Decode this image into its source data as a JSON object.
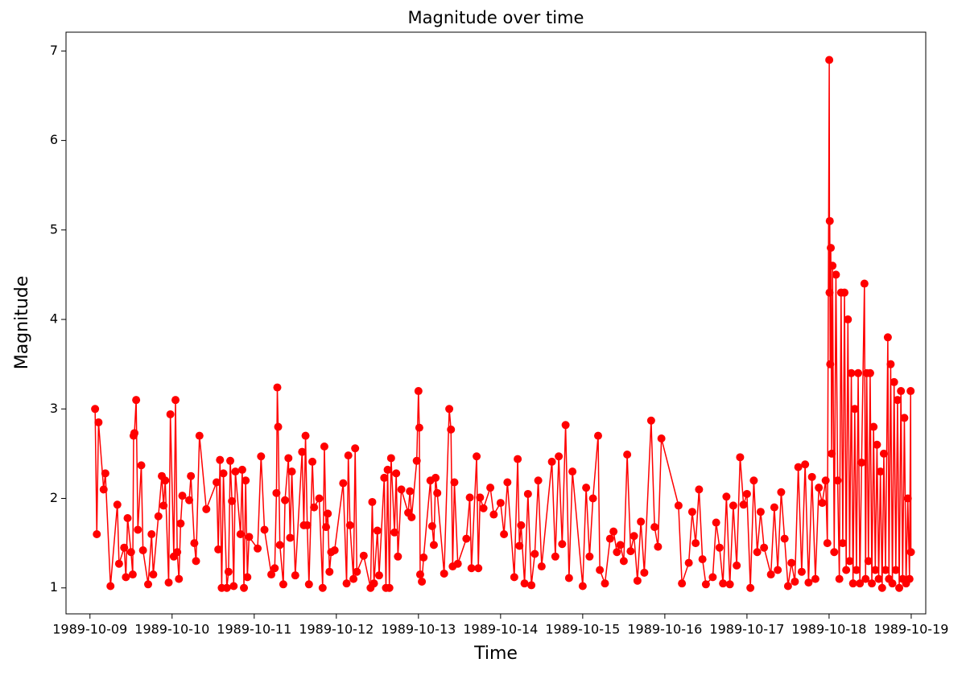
{
  "chart_data": {
    "type": "line",
    "title": "Magnitude over time",
    "x_label": "Time",
    "y_label": "Magnitude",
    "color": "#ff0000",
    "x": [
      "1989-10-09T01:30",
      "1989-10-09T02:00",
      "1989-10-09T02:30",
      "1989-10-09T04:00",
      "1989-10-09T04:30",
      "1989-10-09T06:00",
      "1989-10-09T08:00",
      "1989-10-09T08:30",
      "1989-10-09T10:00",
      "1989-10-09T10:30",
      "1989-10-09T11:00",
      "1989-10-09T12:00",
      "1989-10-09T12:30",
      "1989-10-09T12:45",
      "1989-10-09T13:00",
      "1989-10-09T13:30",
      "1989-10-09T14:00",
      "1989-10-09T15:00",
      "1989-10-09T15:30",
      "1989-10-09T17:00",
      "1989-10-09T18:00",
      "1989-10-09T18:30",
      "1989-10-09T20:00",
      "1989-10-09T21:00",
      "1989-10-09T21:30",
      "1989-10-09T22:00",
      "1989-10-09T23:00",
      "1989-10-09T23:30",
      "1989-10-10T00:30",
      "1989-10-10T01:00",
      "1989-10-10T01:30",
      "1989-10-10T02:00",
      "1989-10-10T02:30",
      "1989-10-10T03:00",
      "1989-10-10T05:00",
      "1989-10-10T05:30",
      "1989-10-10T06:30",
      "1989-10-10T07:00",
      "1989-10-10T08:00",
      "1989-10-10T10:00",
      "1989-10-10T13:00",
      "1989-10-10T13:30",
      "1989-10-10T14:00",
      "1989-10-10T14:30",
      "1989-10-10T15:00",
      "1989-10-10T16:00",
      "1989-10-10T16:30",
      "1989-10-10T17:00",
      "1989-10-10T17:30",
      "1989-10-10T18:00",
      "1989-10-10T18:30",
      "1989-10-10T20:00",
      "1989-10-10T20:30",
      "1989-10-10T21:00",
      "1989-10-10T21:30",
      "1989-10-10T22:00",
      "1989-10-10T22:30",
      "1989-10-11T01:00",
      "1989-10-11T02:00",
      "1989-10-11T03:00",
      "1989-10-11T05:00",
      "1989-10-11T06:00",
      "1989-10-11T06:30",
      "1989-10-11T06:45",
      "1989-10-11T07:00",
      "1989-10-11T07:30",
      "1989-10-11T08:30",
      "1989-10-11T09:00",
      "1989-10-11T10:00",
      "1989-10-11T10:30",
      "1989-10-11T11:00",
      "1989-10-11T12:00",
      "1989-10-11T14:00",
      "1989-10-11T14:30",
      "1989-10-11T15:00",
      "1989-10-11T15:30",
      "1989-10-11T16:00",
      "1989-10-11T17:00",
      "1989-10-11T17:30",
      "1989-10-11T19:00",
      "1989-10-11T20:00",
      "1989-10-11T20:30",
      "1989-10-11T21:00",
      "1989-10-11T21:30",
      "1989-10-11T22:00",
      "1989-10-11T22:30",
      "1989-10-11T23:30",
      "1989-10-12T02:00",
      "1989-10-12T03:00",
      "1989-10-12T03:30",
      "1989-10-12T04:00",
      "1989-10-12T05:00",
      "1989-10-12T05:30",
      "1989-10-12T06:00",
      "1989-10-12T08:00",
      "1989-10-12T10:00",
      "1989-10-12T10:30",
      "1989-10-12T11:00",
      "1989-10-12T12:00",
      "1989-10-12T12:30",
      "1989-10-12T14:00",
      "1989-10-12T14:30",
      "1989-10-12T15:00",
      "1989-10-12T15:30",
      "1989-10-12T16:00",
      "1989-10-12T17:00",
      "1989-10-12T17:30",
      "1989-10-12T18:00",
      "1989-10-12T19:00",
      "1989-10-12T21:00",
      "1989-10-12T21:30",
      "1989-10-12T22:00",
      "1989-10-12T23:30",
      "1989-10-13T00:00",
      "1989-10-13T00:15",
      "1989-10-13T00:30",
      "1989-10-13T01:00",
      "1989-10-13T01:30",
      "1989-10-13T03:30",
      "1989-10-13T04:00",
      "1989-10-13T04:30",
      "1989-10-13T05:00",
      "1989-10-13T05:30",
      "1989-10-13T07:30",
      "1989-10-13T09:00",
      "1989-10-13T09:30",
      "1989-10-13T10:00",
      "1989-10-13T10:30",
      "1989-10-13T11:30",
      "1989-10-13T14:00",
      "1989-10-13T15:00",
      "1989-10-13T15:30",
      "1989-10-13T17:00",
      "1989-10-13T17:30",
      "1989-10-13T18:00",
      "1989-10-13T19:00",
      "1989-10-13T21:00",
      "1989-10-13T22:00",
      "1989-10-14T00:00",
      "1989-10-14T01:00",
      "1989-10-14T02:00",
      "1989-10-14T04:00",
      "1989-10-14T05:00",
      "1989-10-14T05:30",
      "1989-10-14T06:00",
      "1989-10-14T07:00",
      "1989-10-14T08:00",
      "1989-10-14T09:00",
      "1989-10-14T10:00",
      "1989-10-14T11:00",
      "1989-10-14T12:00",
      "1989-10-14T15:00",
      "1989-10-14T16:00",
      "1989-10-14T17:00",
      "1989-10-14T18:00",
      "1989-10-14T19:00",
      "1989-10-14T20:00",
      "1989-10-14T21:00",
      "1989-10-15T00:00",
      "1989-10-15T01:00",
      "1989-10-15T02:00",
      "1989-10-15T03:00",
      "1989-10-15T04:30",
      "1989-10-15T05:00",
      "1989-10-15T06:30",
      "1989-10-15T08:00",
      "1989-10-15T09:00",
      "1989-10-15T10:00",
      "1989-10-15T11:00",
      "1989-10-15T12:00",
      "1989-10-15T13:00",
      "1989-10-15T14:00",
      "1989-10-15T15:00",
      "1989-10-15T16:00",
      "1989-10-15T17:00",
      "1989-10-15T18:00",
      "1989-10-15T20:00",
      "1989-10-15T21:00",
      "1989-10-15T22:00",
      "1989-10-15T23:00",
      "1989-10-16T04:00",
      "1989-10-16T05:00",
      "1989-10-16T07:00",
      "1989-10-16T08:00",
      "1989-10-16T09:00",
      "1989-10-16T10:00",
      "1989-10-16T11:00",
      "1989-10-16T12:00",
      "1989-10-16T14:00",
      "1989-10-16T15:00",
      "1989-10-16T16:00",
      "1989-10-16T17:00",
      "1989-10-16T18:00",
      "1989-10-16T19:00",
      "1989-10-16T20:00",
      "1989-10-16T21:00",
      "1989-10-16T22:00",
      "1989-10-16T23:00",
      "1989-10-17T00:00",
      "1989-10-17T01:00",
      "1989-10-17T02:00",
      "1989-10-17T03:00",
      "1989-10-17T04:00",
      "1989-10-17T05:00",
      "1989-10-17T07:00",
      "1989-10-17T08:00",
      "1989-10-17T09:00",
      "1989-10-17T10:00",
      "1989-10-17T11:00",
      "1989-10-17T12:00",
      "1989-10-17T13:00",
      "1989-10-17T14:00",
      "1989-10-17T15:00",
      "1989-10-17T16:00",
      "1989-10-17T17:00",
      "1989-10-17T18:00",
      "1989-10-17T19:00",
      "1989-10-17T20:00",
      "1989-10-17T21:00",
      "1989-10-17T22:00",
      "1989-10-17T23:00",
      "1989-10-17T23:30",
      "1989-10-18T00:03",
      "1989-10-18T00:08",
      "1989-10-18T00:12",
      "1989-10-18T00:20",
      "1989-10-18T00:30",
      "1989-10-18T00:45",
      "1989-10-18T01:00",
      "1989-10-18T01:30",
      "1989-10-18T02:00",
      "1989-10-18T02:30",
      "1989-10-18T03:00",
      "1989-10-18T03:30",
      "1989-10-18T04:00",
      "1989-10-18T04:30",
      "1989-10-18T05:00",
      "1989-10-18T05:30",
      "1989-10-18T06:00",
      "1989-10-18T06:30",
      "1989-10-18T07:00",
      "1989-10-18T07:30",
      "1989-10-18T08:00",
      "1989-10-18T08:30",
      "1989-10-18T09:00",
      "1989-10-18T09:30",
      "1989-10-18T10:20",
      "1989-10-18T10:40",
      "1989-10-18T11:00",
      "1989-10-18T11:30",
      "1989-10-18T12:00",
      "1989-10-18T12:30",
      "1989-10-18T13:00",
      "1989-10-18T13:30",
      "1989-10-18T14:00",
      "1989-10-18T14:30",
      "1989-10-18T15:00",
      "1989-10-18T15:30",
      "1989-10-18T16:00",
      "1989-10-18T16:30",
      "1989-10-18T17:10",
      "1989-10-18T17:30",
      "1989-10-18T18:00",
      "1989-10-18T18:30",
      "1989-10-18T19:00",
      "1989-10-18T19:30",
      "1989-10-18T20:00",
      "1989-10-18T20:30",
      "1989-10-18T21:00",
      "1989-10-18T21:30",
      "1989-10-18T22:00",
      "1989-10-18T22:30",
      "1989-10-18T23:00",
      "1989-10-18T23:30",
      "1989-10-18T23:50",
      "1989-10-18T23:55"
    ],
    "values": [
      3.0,
      1.6,
      2.85,
      2.1,
      2.28,
      1.02,
      1.93,
      1.27,
      1.45,
      1.12,
      1.78,
      1.4,
      1.15,
      2.7,
      2.73,
      3.1,
      1.65,
      2.37,
      1.42,
      1.04,
      1.6,
      1.15,
      1.8,
      2.25,
      1.92,
      2.2,
      1.06,
      2.94,
      1.35,
      3.1,
      1.4,
      1.1,
      1.72,
      2.03,
      1.98,
      2.25,
      1.5,
      1.3,
      2.7,
      1.88,
      2.18,
      1.43,
      2.43,
      1.0,
      2.28,
      1.0,
      1.18,
      2.42,
      1.97,
      1.02,
      2.3,
      1.6,
      2.32,
      1.0,
      2.2,
      1.12,
      1.57,
      1.44,
      2.47,
      1.65,
      1.15,
      1.22,
      2.06,
      3.24,
      2.8,
      1.48,
      1.04,
      1.98,
      2.45,
      1.56,
      2.3,
      1.14,
      2.52,
      1.7,
      2.7,
      1.7,
      1.04,
      2.41,
      1.9,
      2.0,
      1.0,
      2.58,
      1.68,
      1.83,
      1.18,
      1.4,
      1.42,
      2.17,
      1.05,
      2.48,
      1.7,
      1.1,
      2.56,
      1.18,
      1.36,
      1.0,
      1.96,
      1.05,
      1.64,
      1.14,
      2.23,
      1.0,
      2.32,
      1.0,
      2.45,
      1.62,
      2.28,
      1.35,
      2.1,
      1.84,
      2.08,
      1.79,
      2.42,
      3.2,
      2.79,
      1.15,
      1.07,
      1.34,
      2.2,
      1.69,
      1.48,
      2.23,
      2.06,
      1.16,
      3.0,
      2.77,
      1.24,
      2.18,
      1.27,
      1.55,
      2.01,
      1.22,
      2.47,
      1.22,
      2.01,
      1.89,
      2.12,
      1.82,
      1.95,
      1.6,
      2.18,
      1.12,
      2.44,
      1.47,
      1.7,
      1.05,
      2.05,
      1.03,
      1.38,
      2.2,
      1.24,
      2.41,
      1.35,
      2.47,
      1.49,
      2.82,
      1.11,
      2.3,
      1.02,
      2.12,
      1.35,
      2.0,
      2.7,
      1.2,
      1.05,
      1.55,
      1.63,
      1.4,
      1.48,
      1.3,
      2.49,
      1.41,
      1.58,
      1.08,
      1.74,
      1.17,
      2.87,
      1.68,
      1.46,
      2.67,
      1.92,
      1.05,
      1.28,
      1.85,
      1.5,
      2.1,
      1.32,
      1.04,
      1.12,
      1.73,
      1.45,
      1.05,
      2.02,
      1.04,
      1.92,
      1.25,
      2.46,
      1.93,
      2.05,
      1.0,
      2.2,
      1.4,
      1.85,
      1.45,
      1.15,
      1.9,
      1.2,
      2.07,
      1.55,
      1.02,
      1.28,
      1.07,
      2.35,
      1.18,
      2.38,
      1.06,
      2.24,
      1.1,
      2.12,
      1.95,
      2.2,
      1.5,
      6.9,
      4.3,
      5.1,
      3.5,
      4.8,
      2.5,
      4.6,
      1.4,
      4.5,
      2.2,
      1.1,
      4.3,
      1.5,
      4.3,
      1.2,
      4.0,
      1.3,
      3.4,
      1.05,
      3.0,
      1.2,
      3.4,
      1.05,
      2.4,
      4.4,
      1.1,
      3.4,
      1.3,
      3.4,
      1.05,
      2.8,
      1.2,
      2.6,
      1.1,
      2.3,
      1.0,
      2.5,
      1.2,
      3.8,
      1.1,
      3.5,
      1.05,
      3.3,
      1.2,
      3.1,
      1.0,
      3.2,
      1.1,
      2.9,
      1.05,
      2.0,
      1.1,
      3.2,
      1.4
    ],
    "xlim": [
      "1989-10-08T17:00",
      "1989-10-19T04:15"
    ],
    "xticks": [
      "1989-10-09",
      "1989-10-10",
      "1989-10-11",
      "1989-10-12",
      "1989-10-13",
      "1989-10-14",
      "1989-10-15",
      "1989-10-16",
      "1989-10-17",
      "1989-10-18",
      "1989-10-19"
    ],
    "ylim": [
      0.71,
      7.21
    ],
    "yticks": [
      1,
      2,
      3,
      4,
      5,
      6,
      7
    ]
  }
}
